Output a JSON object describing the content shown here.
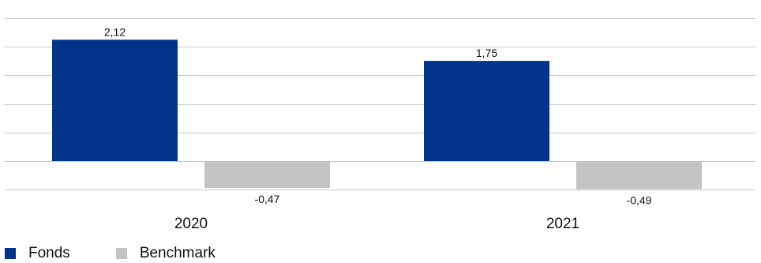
{
  "colors": {
    "title": "#0b3a8f",
    "grid": "#c9c9c9",
    "fonds": "#00348a",
    "benchmark": "#c3c3c3",
    "text": "#111111"
  },
  "chart_data": {
    "type": "bar",
    "title": "",
    "categories": [
      "2020",
      "2021"
    ],
    "series": [
      {
        "name": "Fonds",
        "values": [
          2.12,
          1.75
        ],
        "value_labels": [
          "2,12",
          "1,75"
        ]
      },
      {
        "name": "Benchmark",
        "values": [
          -0.47,
          -0.49
        ],
        "value_labels": [
          "-0,47",
          "-0,49"
        ]
      }
    ],
    "ylim": [
      -0.5,
      2.5
    ],
    "grid": true,
    "y_tick_labels_shown": false,
    "legend_position": "bottom-left"
  }
}
